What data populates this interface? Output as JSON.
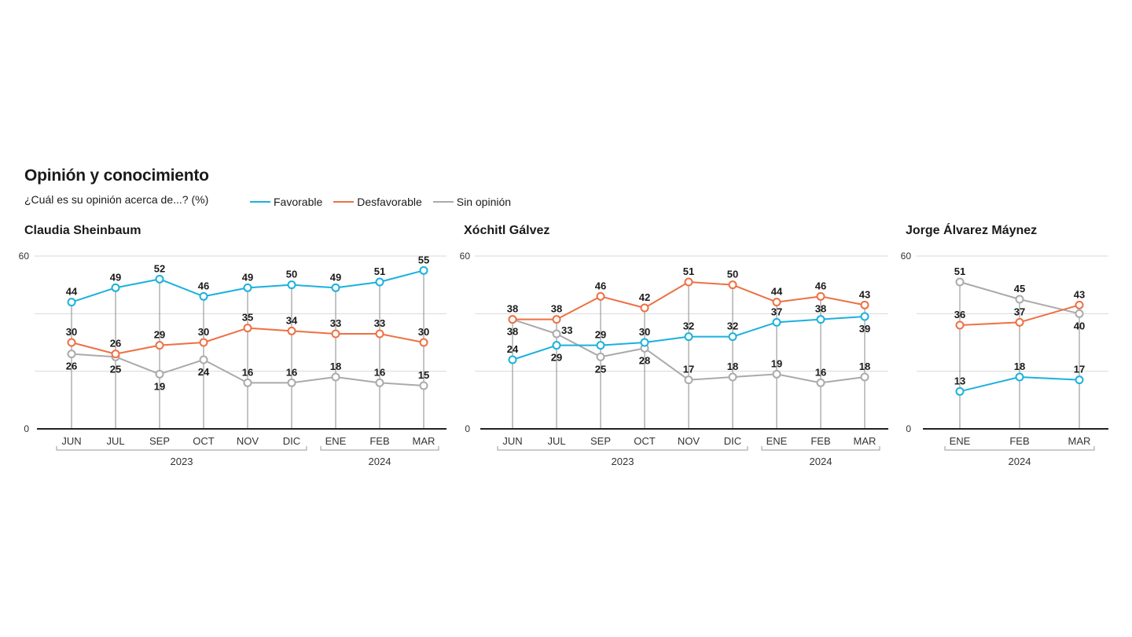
{
  "header": {
    "title": "Opinión y conocimiento",
    "subtitle": "¿Cuál es su opinión acerca de...? (%)"
  },
  "legend": [
    {
      "label": "Favorable",
      "color": "#1ab1de"
    },
    {
      "label": "Desfavorable",
      "color": "#ee7042"
    },
    {
      "label": "Sin opinión",
      "color": "#aaaaaa"
    }
  ],
  "chart_data": [
    {
      "type": "line",
      "title": "Claudia Sheinbaum",
      "categories": [
        "JUN",
        "JUL",
        "SEP",
        "OCT",
        "NOV",
        "DIC",
        "ENE",
        "FEB",
        "MAR"
      ],
      "year_groups": [
        {
          "label": "2023",
          "start": 0,
          "end": 5
        },
        {
          "label": "2024",
          "start": 6,
          "end": 8
        }
      ],
      "ylim": [
        0,
        60
      ],
      "yticks": [
        "0",
        "60"
      ],
      "series": [
        {
          "name": "Favorable",
          "color": "#1ab1de",
          "values": [
            44,
            49,
            52,
            46,
            49,
            50,
            49,
            51,
            55
          ]
        },
        {
          "name": "Desfavorable",
          "color": "#ee7042",
          "values": [
            30,
            26,
            29,
            30,
            35,
            34,
            33,
            33,
            30
          ]
        },
        {
          "name": "Sin opinión",
          "color": "#aaaaaa",
          "values": [
            26,
            25,
            19,
            24,
            16,
            16,
            18,
            16,
            15
          ]
        }
      ]
    },
    {
      "type": "line",
      "title": "Xóchitl Gálvez",
      "categories": [
        "JUN",
        "JUL",
        "SEP",
        "OCT",
        "NOV",
        "DIC",
        "ENE",
        "FEB",
        "MAR"
      ],
      "year_groups": [
        {
          "label": "2023",
          "start": 0,
          "end": 5
        },
        {
          "label": "2024",
          "start": 6,
          "end": 8
        }
      ],
      "ylim": [
        0,
        60
      ],
      "yticks": [
        "0",
        "60"
      ],
      "series": [
        {
          "name": "Favorable",
          "color": "#1ab1de",
          "values": [
            24,
            29,
            29,
            30,
            32,
            32,
            37,
            38,
            39
          ]
        },
        {
          "name": "Desfavorable",
          "color": "#ee7042",
          "values": [
            38,
            38,
            46,
            42,
            51,
            50,
            44,
            46,
            43
          ]
        },
        {
          "name": "Sin opinión",
          "color": "#aaaaaa",
          "values": [
            38,
            33,
            25,
            28,
            17,
            18,
            19,
            16,
            18
          ]
        }
      ]
    },
    {
      "type": "line",
      "title": "Jorge Álvarez Máynez",
      "categories": [
        "ENE",
        "FEB",
        "MAR"
      ],
      "year_groups": [
        {
          "label": "2024",
          "start": 0,
          "end": 2
        }
      ],
      "ylim": [
        0,
        60
      ],
      "yticks": [
        "0",
        "60"
      ],
      "series": [
        {
          "name": "Favorable",
          "color": "#1ab1de",
          "values": [
            13,
            18,
            17
          ]
        },
        {
          "name": "Desfavorable",
          "color": "#ee7042",
          "values": [
            36,
            37,
            43
          ]
        },
        {
          "name": "Sin opinión",
          "color": "#aaaaaa",
          "values": [
            51,
            45,
            40
          ]
        }
      ]
    }
  ]
}
